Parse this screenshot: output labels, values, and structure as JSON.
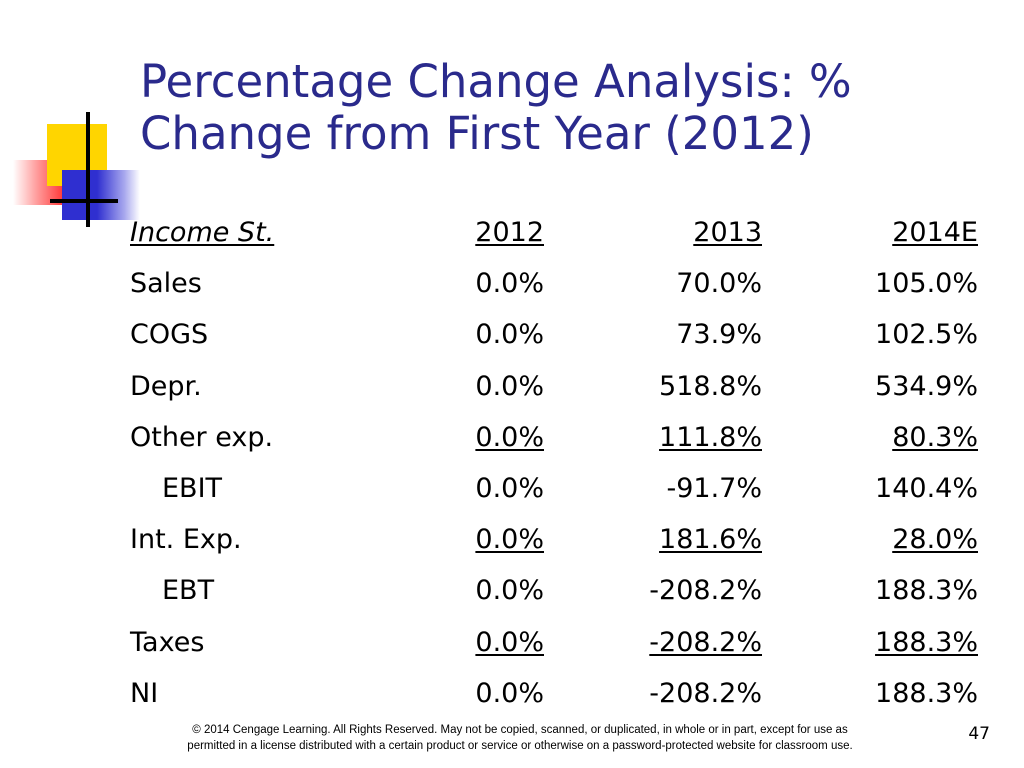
{
  "slide": {
    "title_line1": "Percentage Change Analysis: %",
    "title_line2": "Change from First Year (2012)",
    "page_number": "47",
    "footer_line1": "© 2014 Cengage Learning. All Rights Reserved. May not be copied, scanned, or duplicated, in whole or in part, except for use as",
    "footer_line2": "permitted in a license distributed with a certain product or service or otherwise on a password-protected website for classroom use."
  },
  "table": {
    "header": {
      "label": "Income St.",
      "y1": "2012",
      "y2": "2013",
      "y3": "2014E"
    },
    "rows": [
      {
        "label": "Sales",
        "y1": "0.0%",
        "y2": "70.0%",
        "y3": "105.0%"
      },
      {
        "label": "COGS",
        "y1": "0.0%",
        "y2": "73.9%",
        "y3": "102.5%"
      },
      {
        "label": "Depr.",
        "y1": "0.0%",
        "y2": "518.8%",
        "y3": "534.9%"
      },
      {
        "label": "Other exp.",
        "y1": "0.0%",
        "y2": "111.8%",
        "y3": "80.3%"
      },
      {
        "label": "EBIT",
        "y1": "0.0%",
        "y2": "-91.7%",
        "y3": "140.4%"
      },
      {
        "label": "Int. Exp.",
        "y1": "0.0%",
        "y2": "181.6%",
        "y3": "28.0%"
      },
      {
        "label": "EBT",
        "y1": "0.0%",
        "y2": "-208.2%",
        "y3": "188.3%"
      },
      {
        "label": "Taxes",
        "y1": "0.0%",
        "y2": "-208.2%",
        "y3": "188.3%"
      },
      {
        "label": "NI",
        "y1": "0.0%",
        "y2": "-208.2%",
        "y3": "188.3%"
      }
    ]
  },
  "colors": {
    "title": "#2a2a8c",
    "deco_yellow": "#ffd500",
    "deco_blue": "#2f2fd0",
    "deco_red": "#ff3030"
  }
}
